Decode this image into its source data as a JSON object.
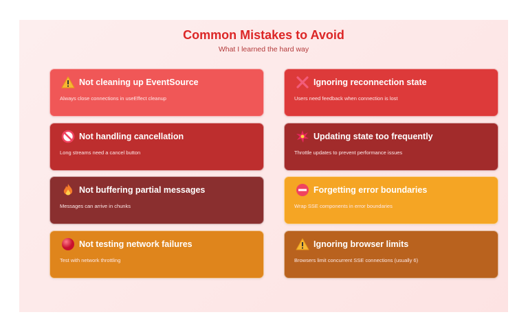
{
  "header": {
    "title": "Common Mistakes to Avoid",
    "subtitle": "What I learned the hard way"
  },
  "cards": [
    {
      "icon": "warning-icon",
      "title": "Not cleaning up EventSource",
      "desc": "Always close connections in useEffect cleanup",
      "color": "#f05757"
    },
    {
      "icon": "cross-mark-icon",
      "title": "Ignoring reconnection state",
      "desc": "Users need feedback when connection is lost",
      "color": "#dd3a3a"
    },
    {
      "icon": "prohibited-icon",
      "title": "Not handling cancellation",
      "desc": "Long streams need a cancel button",
      "color": "#bd2e2e"
    },
    {
      "icon": "collision-icon",
      "title": "Updating state too frequently",
      "desc": "Throttle updates to prevent performance issues",
      "color": "#a22b2b"
    },
    {
      "icon": "fire-icon",
      "title": "Not buffering partial messages",
      "desc": "Messages can arrive in chunks",
      "color": "#8a2f2f"
    },
    {
      "icon": "no-entry-icon",
      "title": "Forgetting error boundaries",
      "desc": "Wrap SSE components in error boundaries",
      "color": "#f5a524"
    },
    {
      "icon": "red-circle-icon",
      "title": "Not testing network failures",
      "desc": "Test with network throttling",
      "color": "#df851c"
    },
    {
      "icon": "warning-icon",
      "title": "Ignoring browser limits",
      "desc": "Browsers limit concurrent SSE connections (usually 6)",
      "color": "#b9621e"
    }
  ]
}
